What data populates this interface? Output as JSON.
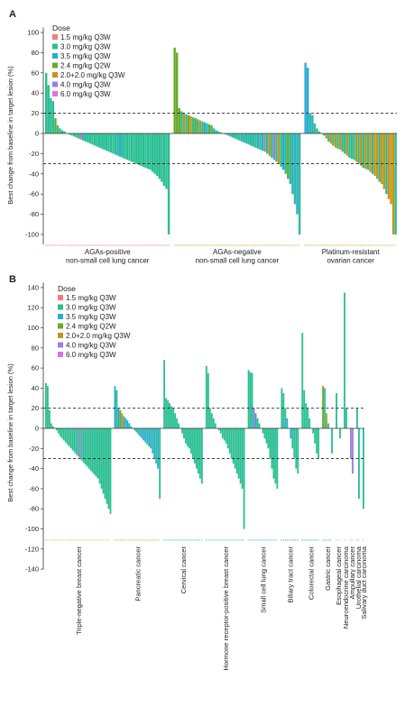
{
  "panels": [
    {
      "label": "A",
      "ylabel": "Best change from baseline in target lesion (%)",
      "legend_title": "Dose",
      "legend": [
        {
          "name": "1.5 mg/kg Q3W",
          "color": "#f07d7d"
        },
        {
          "name": "3.0 mg/kg Q3W",
          "color": "#2bbf93"
        },
        {
          "name": "3.5 mg/kg Q3W",
          "color": "#2ba9d8"
        },
        {
          "name": "2.4 mg/kg Q2W",
          "color": "#6aaa2a"
        },
        {
          "name": "2.0+2.0 mg/kg Q3W",
          "color": "#c9941a"
        },
        {
          "name": "4.0 mg/kg Q3W",
          "color": "#9b7fd9"
        },
        {
          "name": "6.0 mg/kg Q3W",
          "color": "#e070e0"
        }
      ],
      "xlabels": [
        "AGAs-positive\nnon-small cell lung cancer",
        "AGAs-negative\nnon-small cell lung cancer",
        "Platinum-resistant\novarian cancer"
      ]
    },
    {
      "label": "B",
      "ylabel": "Best change from baseline in target lesion (%)",
      "legend_title": "Dose",
      "legend": [
        {
          "name": "1.5 mg/kg Q3W",
          "color": "#f07d7d"
        },
        {
          "name": "3.0 mg/kg Q3W",
          "color": "#2bbf93"
        },
        {
          "name": "3.5 mg/kg Q3W",
          "color": "#2ba9d8"
        },
        {
          "name": "2.4 mg/kg Q2W",
          "color": "#6aaa2a"
        },
        {
          "name": "2.0+2.0 mg/kg Q3W",
          "color": "#c9941a"
        },
        {
          "name": "4.0 mg/kg Q3W",
          "color": "#9b7fd9"
        },
        {
          "name": "6.0 mg/kg Q3W",
          "color": "#e070e0"
        }
      ],
      "xlabels": [
        "Triple-negative breast cancer",
        "Pancreatic cancer",
        "Cervical cancer",
        "Hormone receptor-positive breast cancer",
        "Small cell lung cancer",
        "Biliary tract cancer",
        "Colorectal cancer",
        "Gastric cancer",
        "Esophageal cancer",
        "Neuroendocrine carcinoma",
        "Ampullary cancer",
        "Urothelial carcinoma",
        "Salivary duct carcinoma"
      ]
    }
  ],
  "chart_data": [
    {
      "type": "bar",
      "panel": "A",
      "ylabel": "Best change from baseline in target lesion (%)",
      "ylim": [
        -110,
        105
      ],
      "yticks": [
        -100,
        -80,
        -60,
        -40,
        -20,
        0,
        20,
        40,
        60,
        80,
        100
      ],
      "reference_lines": [
        20,
        -30
      ],
      "groups": [
        {
          "name": "AGAs-positive\nnon-small cell lung cancer",
          "color": "#f08080",
          "values": [
            60,
            48,
            35,
            32,
            15,
            8,
            5,
            3,
            2,
            0,
            -1,
            -2,
            -3,
            -4,
            -5,
            -6,
            -7,
            -8,
            -9,
            -10,
            -11,
            -12,
            -13,
            -14,
            -15,
            -16,
            -17,
            -18,
            -19,
            -20,
            -21,
            -22,
            -23,
            -24,
            -25,
            -26,
            -27,
            -28,
            -29,
            -30,
            -31,
            -32,
            -33,
            -34,
            -35,
            -36,
            -38,
            -40,
            -42,
            -45,
            -48,
            -52,
            -55,
            -100
          ],
          "doses": [
            1,
            1,
            1,
            1,
            3,
            1,
            1,
            1,
            1,
            1,
            1,
            1,
            1,
            1,
            1,
            5,
            1,
            1,
            1,
            1,
            1,
            1,
            1,
            1,
            1,
            1,
            1,
            1,
            1,
            1,
            1,
            1,
            2,
            1,
            1,
            1,
            1,
            1,
            1,
            1,
            1,
            1,
            1,
            1,
            1,
            1,
            1,
            1,
            1,
            1,
            1,
            1,
            1,
            1
          ]
        },
        {
          "name": "AGAs-negative\nnon-small cell lung cancer",
          "color": "#e0a030",
          "values": [
            85,
            80,
            25,
            22,
            20,
            19,
            18,
            17,
            16,
            15,
            14,
            13,
            12,
            11,
            10,
            9,
            8,
            5,
            3,
            2,
            1,
            0,
            -1,
            -2,
            -3,
            -4,
            -5,
            -6,
            -7,
            -8,
            -9,
            -10,
            -11,
            -12,
            -13,
            -14,
            -15,
            -16,
            -17,
            -18,
            -20,
            -22,
            -24,
            -26,
            -28,
            -30,
            -33,
            -36,
            -40,
            -45,
            -50,
            -60,
            -70,
            -80,
            -100
          ],
          "doses": [
            3,
            3,
            3,
            1,
            4,
            1,
            3,
            4,
            1,
            3,
            1,
            4,
            1,
            2,
            1,
            3,
            1,
            1,
            1,
            1,
            1,
            1,
            1,
            1,
            1,
            2,
            1,
            1,
            1,
            1,
            2,
            1,
            1,
            2,
            1,
            1,
            2,
            1,
            1,
            5,
            1,
            4,
            1,
            5,
            1,
            4,
            1,
            2,
            1,
            3,
            1,
            2,
            1,
            2,
            1
          ]
        },
        {
          "name": "Platinum-resistant\novarian cancer",
          "color": "#e0a030",
          "values": [
            70,
            65,
            20,
            18,
            10,
            5,
            2,
            0,
            -2,
            -5,
            -8,
            -10,
            -12,
            -14,
            -15,
            -16,
            -18,
            -20,
            -22,
            -24,
            -25,
            -26,
            -28,
            -30,
            -32,
            -34,
            -35,
            -36,
            -38,
            -40,
            -42,
            -45,
            -48,
            -50,
            -55,
            -60,
            -65,
            -70,
            -100,
            -100
          ],
          "doses": [
            2,
            2,
            1,
            2,
            1,
            1,
            1,
            1,
            1,
            4,
            1,
            4,
            1,
            4,
            1,
            4,
            1,
            1,
            4,
            1,
            1,
            1,
            4,
            1,
            4,
            1,
            4,
            1,
            4,
            1,
            4,
            4,
            1,
            4,
            4,
            1,
            4,
            4,
            4,
            1
          ]
        }
      ]
    },
    {
      "type": "bar",
      "panel": "B",
      "ylabel": "Best change from baseline in target lesion (%)",
      "ylim": [
        -140,
        145
      ],
      "yticks": [
        -140,
        -120,
        -100,
        -80,
        -60,
        -40,
        -20,
        0,
        20,
        40,
        60,
        80,
        100,
        120,
        140
      ],
      "reference_lines": [
        20,
        -30
      ],
      "groups": [
        {
          "name": "Triple-negative breast cancer",
          "color": "#e0c040",
          "values": [
            45,
            42,
            18,
            5,
            2,
            0,
            -2,
            -5,
            -8,
            -10,
            -12,
            -14,
            -16,
            -18,
            -20,
            -22,
            -24,
            -26,
            -28,
            -30,
            -32,
            -34,
            -36,
            -38,
            -40,
            -42,
            -44,
            -46,
            -48,
            -50,
            -55,
            -60,
            -65,
            -70,
            -75,
            -80,
            -85
          ],
          "doses": [
            1,
            1,
            1,
            1,
            1,
            1,
            1,
            1,
            1,
            1,
            1,
            1,
            1,
            1,
            1,
            1,
            1,
            1,
            1,
            5,
            1,
            1,
            1,
            1,
            1,
            1,
            1,
            1,
            1,
            1,
            1,
            1,
            1,
            1,
            1,
            1,
            1
          ]
        },
        {
          "name": "Pancreatic cancer",
          "color": "#d0b030",
          "values": [
            42,
            38,
            20,
            18,
            15,
            12,
            10,
            8,
            5,
            2,
            0,
            -2,
            -4,
            -6,
            -8,
            -10,
            -12,
            -14,
            -16,
            -18,
            -20,
            -25,
            -30,
            -35,
            -40,
            -70
          ],
          "doses": [
            2,
            1,
            2,
            3,
            4,
            2,
            1,
            2,
            2,
            1,
            2,
            1,
            2,
            1,
            2,
            1,
            2,
            2,
            1,
            2,
            2,
            1,
            2,
            1,
            2,
            1
          ]
        },
        {
          "name": "Cervical cancer",
          "color": "#40c090",
          "values": [
            68,
            30,
            28,
            25,
            22,
            20,
            15,
            10,
            5,
            0,
            -5,
            -10,
            -15,
            -18,
            -20,
            -25,
            -30,
            -35,
            -40,
            -45,
            -50,
            -55
          ],
          "doses": [
            1,
            1,
            1,
            1,
            1,
            1,
            1,
            1,
            1,
            1,
            1,
            1,
            1,
            1,
            1,
            1,
            1,
            1,
            1,
            1,
            1,
            1
          ]
        },
        {
          "name": "Hormone receptor-positive breast cancer",
          "color": "#40c0c0",
          "values": [
            62,
            55,
            20,
            15,
            10,
            5,
            0,
            -2,
            -5,
            -10,
            -12,
            -15,
            -20,
            -25,
            -30,
            -35,
            -40,
            -45,
            -50,
            -55,
            -60,
            -100
          ],
          "doses": [
            1,
            1,
            1,
            1,
            1,
            1,
            1,
            2,
            1,
            1,
            1,
            1,
            1,
            1,
            1,
            1,
            1,
            1,
            1,
            1,
            1,
            1
          ]
        },
        {
          "name": "Small cell lung cancer",
          "color": "#40b0d0",
          "values": [
            58,
            56,
            55,
            20,
            15,
            10,
            5,
            0,
            -5,
            -10,
            -15,
            -20,
            -30,
            -40,
            -50,
            -55,
            -60
          ],
          "doses": [
            1,
            1,
            1,
            5,
            2,
            1,
            1,
            1,
            1,
            1,
            1,
            1,
            1,
            1,
            1,
            1,
            1
          ]
        },
        {
          "name": "Biliary tract cancer",
          "color": "#40a0d0",
          "values": [
            40,
            35,
            20,
            10,
            0,
            -10,
            -20,
            -30,
            -40,
            -45
          ],
          "doses": [
            1,
            1,
            1,
            2,
            1,
            2,
            1,
            1,
            1,
            1
          ]
        },
        {
          "name": "Colorectal cancer",
          "color": "#40a0d0",
          "values": [
            95,
            38,
            25,
            20,
            10,
            0,
            -5,
            -15,
            -25,
            -30
          ],
          "doses": [
            1,
            1,
            1,
            1,
            1,
            1,
            1,
            1,
            1,
            1
          ]
        },
        {
          "name": "Gastric cancer",
          "color": "#40a0d0",
          "values": [
            42,
            40,
            15,
            5,
            0,
            -25
          ],
          "doses": [
            3,
            1,
            4,
            1,
            1,
            1
          ]
        },
        {
          "name": "Esophageal cancer",
          "color": "#c0c0d0",
          "values": [
            35,
            0,
            -10
          ],
          "doses": [
            1,
            3,
            1
          ]
        },
        {
          "name": "Neuroendocrine carcinoma",
          "color": "#c0c0d0",
          "values": [
            135,
            20
          ],
          "doses": [
            1,
            1
          ]
        },
        {
          "name": "Ampullary cancer",
          "color": "#c080e0",
          "values": [
            -30,
            -45
          ],
          "doses": [
            5,
            5
          ]
        },
        {
          "name": "Urothelial carcinoma",
          "color": "#c080e0",
          "values": [
            20,
            -70
          ],
          "doses": [
            1,
            1
          ]
        },
        {
          "name": "Salivary duct carcinoma",
          "color": "#c080e0",
          "values": [
            -80
          ],
          "doses": [
            1
          ]
        }
      ]
    }
  ]
}
